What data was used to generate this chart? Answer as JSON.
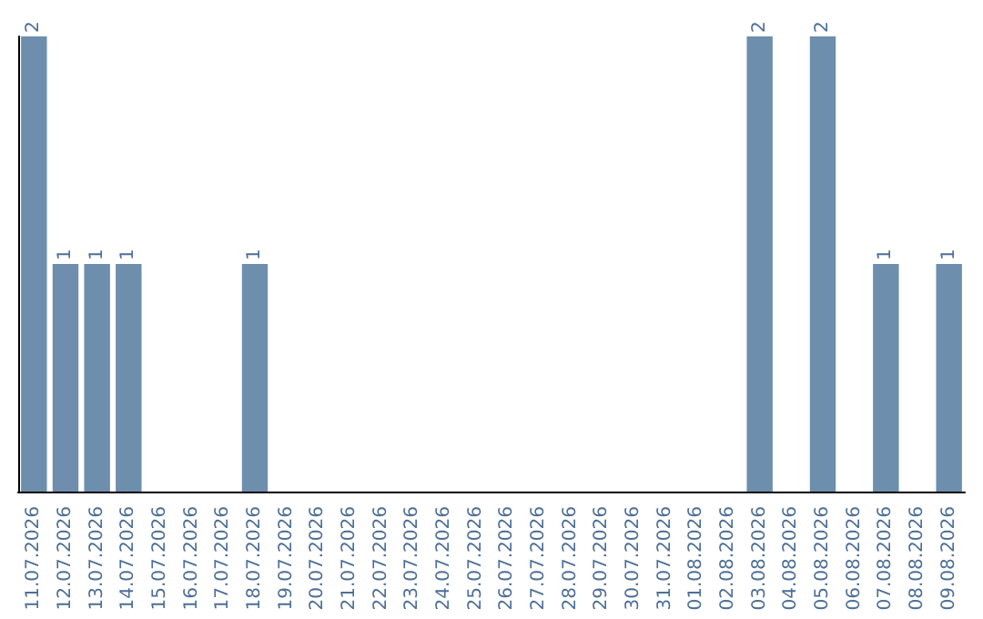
{
  "chart_data": {
    "type": "bar",
    "categories": [
      "11.07.2026",
      "12.07.2026",
      "13.07.2026",
      "14.07.2026",
      "15.07.2026",
      "16.07.2026",
      "17.07.2026",
      "18.07.2026",
      "19.07.2026",
      "20.07.2026",
      "21.07.2026",
      "22.07.2026",
      "23.07.2026",
      "24.07.2026",
      "25.07.2026",
      "26.07.2026",
      "27.07.2026",
      "28.07.2026",
      "29.07.2026",
      "30.07.2026",
      "31.07.2026",
      "01.08.2026",
      "02.08.2026",
      "03.08.2026",
      "04.08.2026",
      "05.08.2026",
      "06.08.2026",
      "07.08.2026",
      "08.08.2026",
      "09.08.2026"
    ],
    "values": [
      2,
      1,
      1,
      1,
      0,
      0,
      0,
      1,
      0,
      0,
      0,
      0,
      0,
      0,
      0,
      0,
      0,
      0,
      0,
      0,
      0,
      0,
      0,
      2,
      0,
      2,
      0,
      1,
      0,
      1
    ],
    "value_labels": [
      "2",
      "1",
      "1",
      "1",
      null,
      null,
      null,
      "1",
      null,
      null,
      null,
      null,
      null,
      null,
      null,
      null,
      null,
      null,
      null,
      null,
      null,
      null,
      null,
      "2",
      null,
      "2",
      null,
      "1",
      null,
      "1"
    ],
    "color": "#6d8fad",
    "ylim": [
      0,
      2
    ],
    "tick_labels": "x"
  }
}
